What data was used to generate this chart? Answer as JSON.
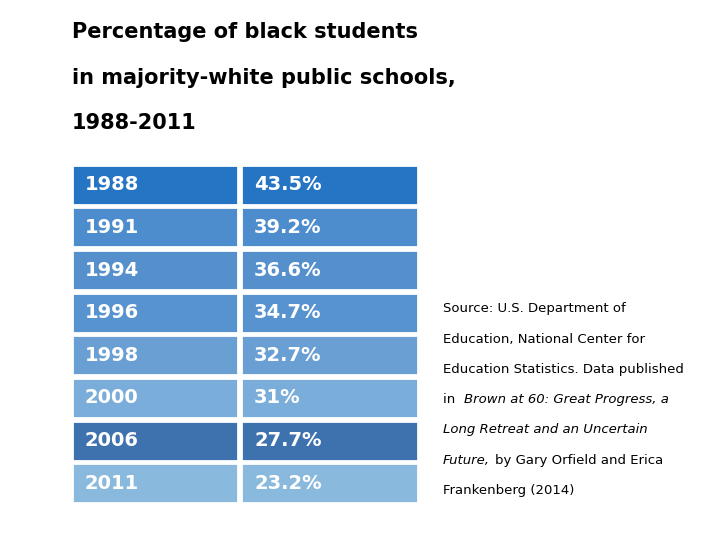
{
  "title_line1": "Percentage of black students",
  "title_line2": "in majority-white public schools,",
  "title_line3": "1988-2011",
  "years": [
    "1988",
    "1991",
    "1994",
    "1996",
    "1998",
    "2000",
    "2006",
    "2011"
  ],
  "values": [
    "43.5%",
    "39.2%",
    "36.6%",
    "34.7%",
    "32.7%",
    "31%",
    "27.7%",
    "23.2%"
  ],
  "row_colors": [
    "#2575C4",
    "#4D8DCE",
    "#5590CC",
    "#5793CE",
    "#6A9FD4",
    "#7AADDA",
    "#3D72AE",
    "#89B9DC"
  ],
  "text_color": "#FFFFFF",
  "background_color": "#FFFFFF",
  "title_fontsize": 15,
  "cell_fontsize": 14,
  "source_fontsize": 9.5
}
